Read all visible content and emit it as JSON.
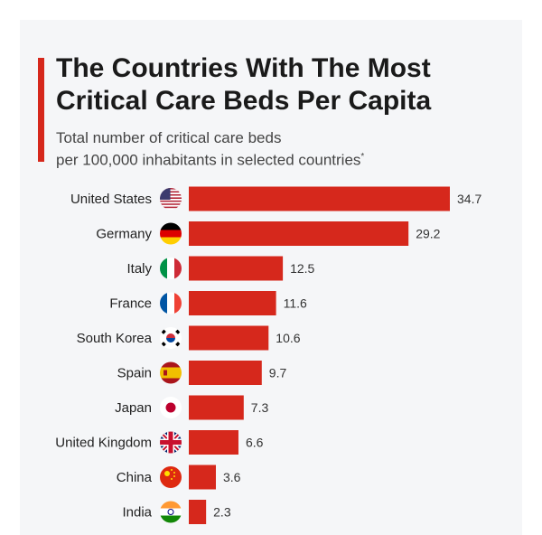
{
  "header": {
    "title_line1": "The Countries With The Most",
    "title_line2": "Critical Care Beds Per Capita",
    "subtitle_line1": "Total number of critical care beds",
    "subtitle_line2": "per 100,000 inhabitants in selected countries",
    "footnote_mark": "*"
  },
  "colors": {
    "bar": "#d6281c",
    "accent": "#d6281c"
  },
  "chart_data": {
    "type": "bar",
    "orientation": "horizontal",
    "title": "The Countries With The Most Critical Care Beds Per Capita",
    "subtitle": "Total number of critical care beds per 100,000 inhabitants in selected countries*",
    "categories": [
      "United States",
      "Germany",
      "Italy",
      "France",
      "South Korea",
      "Spain",
      "Japan",
      "United Kingdom",
      "China",
      "India"
    ],
    "values": [
      34.7,
      29.2,
      12.5,
      11.6,
      10.6,
      9.7,
      7.3,
      6.6,
      3.6,
      2.3
    ],
    "value_labels": [
      "34.7",
      "29.2",
      "12.5",
      "11.6",
      "10.6",
      "9.7",
      "7.3",
      "6.6",
      "3.6",
      "2.3"
    ],
    "flag_icons": [
      "us-flag-icon",
      "germany-flag-icon",
      "italy-flag-icon",
      "france-flag-icon",
      "south-korea-flag-icon",
      "spain-flag-icon",
      "japan-flag-icon",
      "uk-flag-icon",
      "china-flag-icon",
      "india-flag-icon"
    ],
    "xlim": [
      0,
      34.7
    ],
    "grid": false,
    "legend": "none"
  }
}
